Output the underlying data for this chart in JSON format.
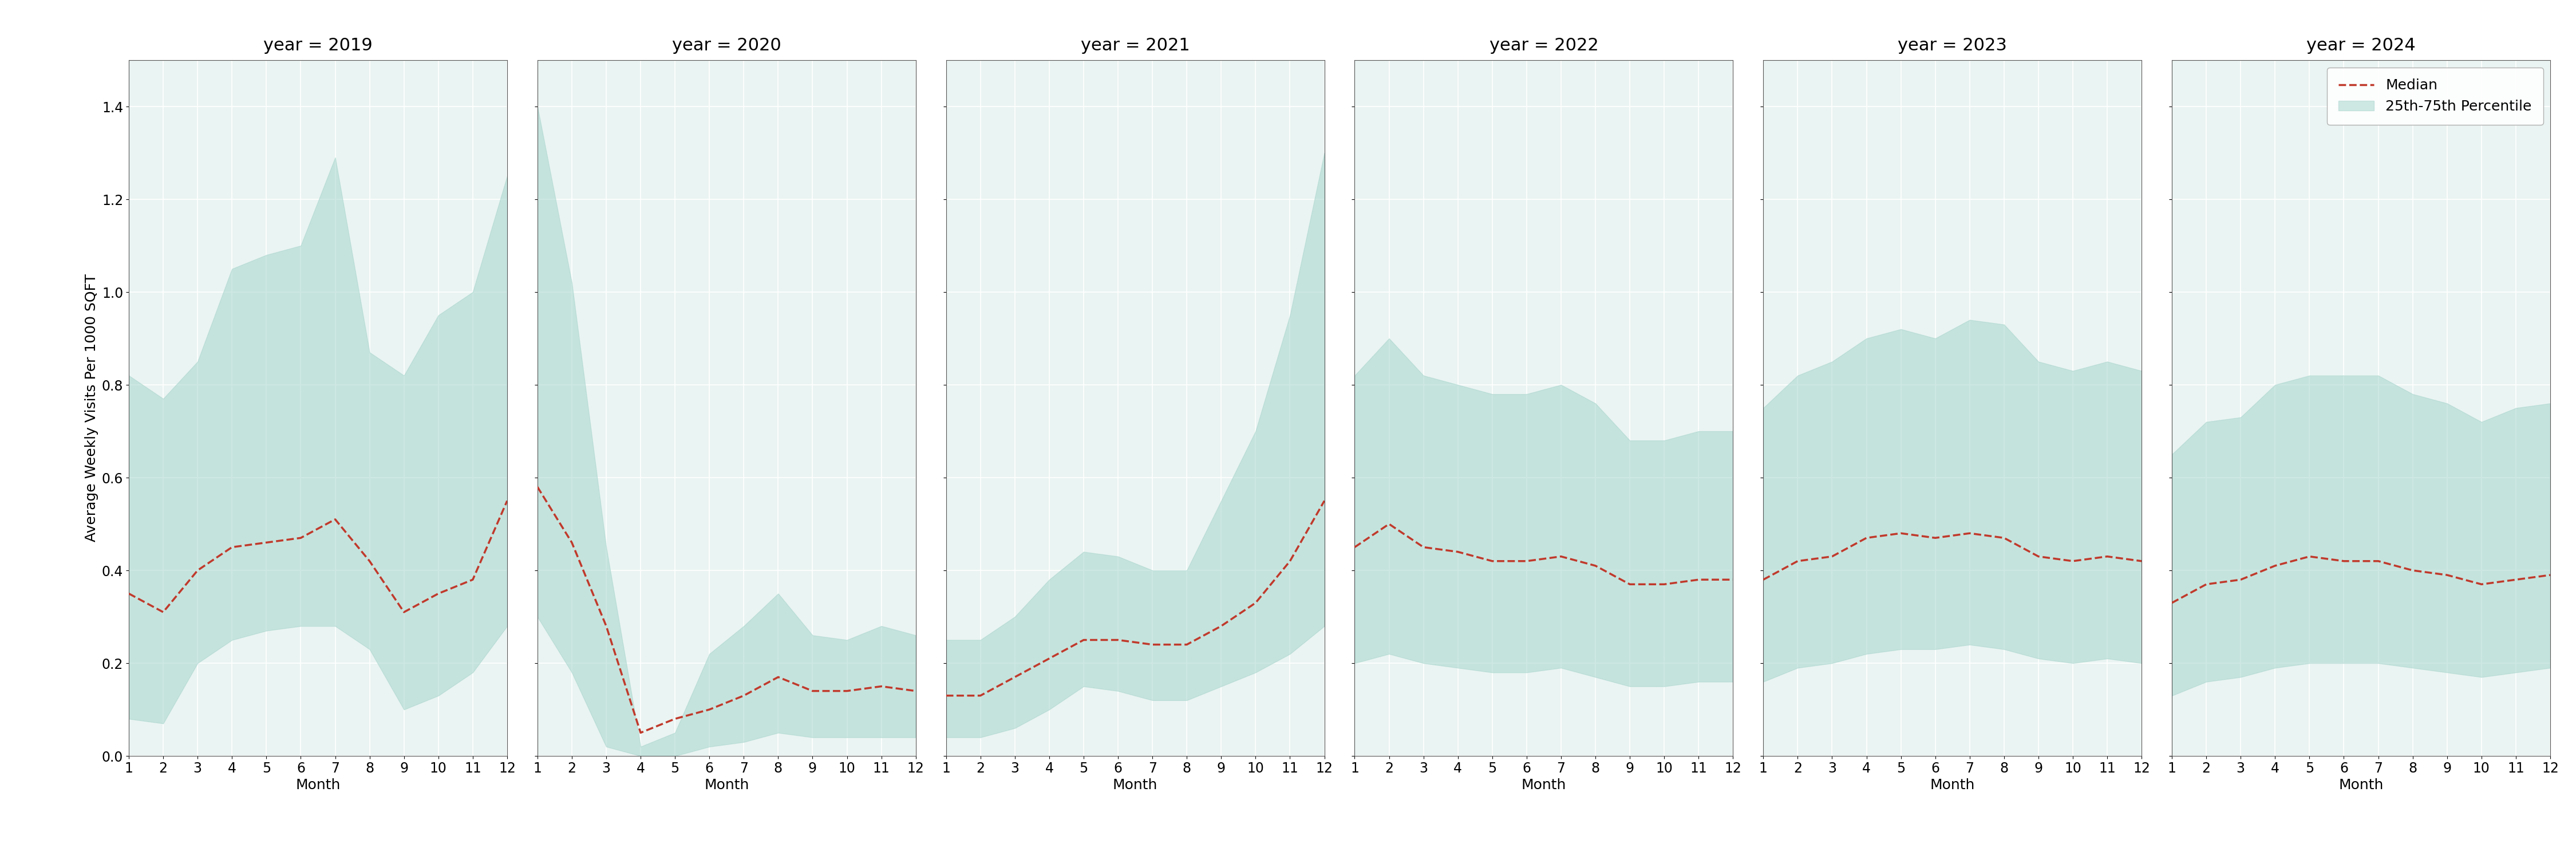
{
  "years": [
    2019,
    2020,
    2021,
    2022,
    2023,
    2024
  ],
  "months": [
    1,
    2,
    3,
    4,
    5,
    6,
    7,
    8,
    9,
    10,
    11,
    12
  ],
  "median": {
    "2019": [
      0.35,
      0.31,
      0.4,
      0.45,
      0.46,
      0.47,
      0.51,
      0.42,
      0.31,
      0.35,
      0.38,
      0.55
    ],
    "2020": [
      0.58,
      0.46,
      0.28,
      0.05,
      0.08,
      0.1,
      0.13,
      0.17,
      0.14,
      0.14,
      0.15,
      0.14
    ],
    "2021": [
      0.13,
      0.13,
      0.17,
      0.21,
      0.25,
      0.25,
      0.24,
      0.24,
      0.28,
      0.33,
      0.42,
      0.55
    ],
    "2022": [
      0.45,
      0.5,
      0.45,
      0.44,
      0.42,
      0.42,
      0.43,
      0.41,
      0.37,
      0.37,
      0.38,
      0.38
    ],
    "2023": [
      0.38,
      0.42,
      0.43,
      0.47,
      0.48,
      0.47,
      0.48,
      0.47,
      0.43,
      0.42,
      0.43,
      0.42
    ],
    "2024": [
      0.33,
      0.37,
      0.38,
      0.41,
      0.43,
      0.42,
      0.42,
      0.4,
      0.39,
      0.37,
      0.38,
      0.39
    ]
  },
  "p25": {
    "2019": [
      0.08,
      0.07,
      0.2,
      0.25,
      0.27,
      0.28,
      0.28,
      0.23,
      0.1,
      0.13,
      0.18,
      0.28
    ],
    "2020": [
      0.3,
      0.18,
      0.02,
      0.0,
      0.0,
      0.02,
      0.03,
      0.05,
      0.04,
      0.04,
      0.04,
      0.04
    ],
    "2021": [
      0.04,
      0.04,
      0.06,
      0.1,
      0.15,
      0.14,
      0.12,
      0.12,
      0.15,
      0.18,
      0.22,
      0.28
    ],
    "2022": [
      0.2,
      0.22,
      0.2,
      0.19,
      0.18,
      0.18,
      0.19,
      0.17,
      0.15,
      0.15,
      0.16,
      0.16
    ],
    "2023": [
      0.16,
      0.19,
      0.2,
      0.22,
      0.23,
      0.23,
      0.24,
      0.23,
      0.21,
      0.2,
      0.21,
      0.2
    ],
    "2024": [
      0.13,
      0.16,
      0.17,
      0.19,
      0.2,
      0.2,
      0.2,
      0.19,
      0.18,
      0.17,
      0.18,
      0.19
    ]
  },
  "p75": {
    "2019": [
      0.82,
      0.77,
      0.85,
      1.05,
      1.08,
      1.1,
      1.29,
      0.87,
      0.82,
      0.95,
      1.0,
      1.25
    ],
    "2020": [
      1.4,
      1.02,
      0.45,
      0.02,
      0.05,
      0.22,
      0.28,
      0.35,
      0.26,
      0.25,
      0.28,
      0.26
    ],
    "2021": [
      0.25,
      0.25,
      0.3,
      0.38,
      0.44,
      0.43,
      0.4,
      0.4,
      0.55,
      0.7,
      0.95,
      1.3
    ],
    "2022": [
      0.82,
      0.9,
      0.82,
      0.8,
      0.78,
      0.78,
      0.8,
      0.76,
      0.68,
      0.68,
      0.7,
      0.7
    ],
    "2023": [
      0.75,
      0.82,
      0.85,
      0.9,
      0.92,
      0.9,
      0.94,
      0.93,
      0.85,
      0.83,
      0.85,
      0.83
    ],
    "2024": [
      0.65,
      0.72,
      0.73,
      0.8,
      0.82,
      0.82,
      0.82,
      0.78,
      0.76,
      0.72,
      0.75,
      0.76
    ]
  },
  "ylim": [
    0.0,
    1.5
  ],
  "yticks": [
    0.0,
    0.2,
    0.4,
    0.6,
    0.8,
    1.0,
    1.2,
    1.4
  ],
  "fill_color": "#a8d5cd",
  "fill_alpha": 0.55,
  "median_color": "#c0392b",
  "median_linewidth": 2.5,
  "median_linestyle": "--",
  "ylabel": "Average Weekly Visits Per 1000 SQFT",
  "xlabel": "Month",
  "panel_bg": "#eaf4f2",
  "grid_color": "#ffffff",
  "title_fontsize": 22,
  "label_fontsize": 18,
  "tick_fontsize": 17,
  "legend_fontsize": 18
}
